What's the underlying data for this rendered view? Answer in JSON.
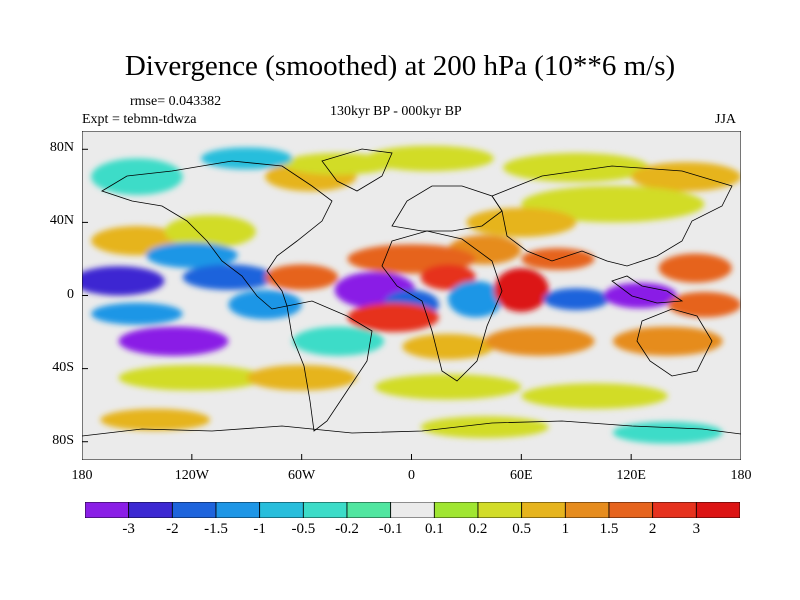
{
  "title": "Divergence (smoothed) at 200 hPa (10**6 m/s)",
  "rmse_label": "rmse= 0.043382",
  "expt_label": "Expt = tebmn-tdwza",
  "period_label": "130kyr BP - 000kyr BP",
  "season_label": "JJA",
  "axes": {
    "lat_ticks": [
      {
        "label": "80N",
        "value": 80
      },
      {
        "label": "40N",
        "value": 40
      },
      {
        "label": "0",
        "value": 0
      },
      {
        "label": "40S",
        "value": -40
      },
      {
        "label": "80S",
        "value": -80
      }
    ],
    "lon_ticks": [
      {
        "label": "180",
        "value": -180
      },
      {
        "label": "120W",
        "value": -120
      },
      {
        "label": "60W",
        "value": -60
      },
      {
        "label": "0",
        "value": 0
      },
      {
        "label": "60E",
        "value": 60
      },
      {
        "label": "120E",
        "value": 120
      },
      {
        "label": "180",
        "value": 180
      }
    ],
    "lat_range": [
      -90,
      90
    ],
    "lon_range": [
      -180,
      180
    ]
  },
  "colorbar": {
    "labels": [
      "-3",
      "-2",
      "-1.5",
      "-1",
      "-0.5",
      "-0.2",
      "-0.1",
      "0.1",
      "0.2",
      "0.5",
      "1",
      "1.5",
      "2",
      "3"
    ],
    "colors": [
      "#8a1ee6",
      "#3c28d2",
      "#1e64dc",
      "#1e96e6",
      "#28bedc",
      "#3cdcc8",
      "#50e6a0",
      "#ebebeb",
      "#a0e632",
      "#d2dc28",
      "#e6b41e",
      "#e68c1e",
      "#e6641e",
      "#e6321e",
      "#dc1414"
    ]
  },
  "features": [
    {
      "lon": -55,
      "lat": 65,
      "rx": 25,
      "ry": 8,
      "color": "#e6b41e"
    },
    {
      "lon": -40,
      "lat": 72,
      "rx": 30,
      "ry": 6,
      "color": "#d2dc28"
    },
    {
      "lon": 10,
      "lat": 75,
      "rx": 35,
      "ry": 7,
      "color": "#d2dc28"
    },
    {
      "lon": 90,
      "lat": 70,
      "rx": 40,
      "ry": 8,
      "color": "#d2dc28"
    },
    {
      "lon": 150,
      "lat": 65,
      "rx": 30,
      "ry": 8,
      "color": "#e6b41e"
    },
    {
      "lon": -150,
      "lat": 65,
      "rx": 25,
      "ry": 10,
      "color": "#3cdcc8"
    },
    {
      "lon": -90,
      "lat": 75,
      "rx": 25,
      "ry": 6,
      "color": "#28bedc"
    },
    {
      "lon": 110,
      "lat": 50,
      "rx": 50,
      "ry": 10,
      "color": "#d2dc28"
    },
    {
      "lon": 60,
      "lat": 40,
      "rx": 30,
      "ry": 8,
      "color": "#e6b41e"
    },
    {
      "lon": 40,
      "lat": 25,
      "rx": 20,
      "ry": 8,
      "color": "#e68c1e"
    },
    {
      "lon": 0,
      "lat": 20,
      "rx": 35,
      "ry": 8,
      "color": "#e6641e"
    },
    {
      "lon": -150,
      "lat": 30,
      "rx": 25,
      "ry": 8,
      "color": "#e6b41e"
    },
    {
      "lon": -110,
      "lat": 35,
      "rx": 25,
      "ry": 9,
      "color": "#d2dc28"
    },
    {
      "lon": -120,
      "lat": 22,
      "rx": 25,
      "ry": 7,
      "color": "#1e96e6"
    },
    {
      "lon": -160,
      "lat": 8,
      "rx": 25,
      "ry": 8,
      "color": "#3c28d2"
    },
    {
      "lon": -100,
      "lat": 10,
      "rx": 25,
      "ry": 7,
      "color": "#1e64dc"
    },
    {
      "lon": -60,
      "lat": 10,
      "rx": 20,
      "ry": 7,
      "color": "#e6641e"
    },
    {
      "lon": -20,
      "lat": 3,
      "rx": 22,
      "ry": 10,
      "color": "#8a1ee6"
    },
    {
      "lon": 0,
      "lat": -5,
      "rx": 15,
      "ry": 8,
      "color": "#1e64dc"
    },
    {
      "lon": -10,
      "lat": -12,
      "rx": 25,
      "ry": 8,
      "color": "#e6321e"
    },
    {
      "lon": 20,
      "lat": 10,
      "rx": 15,
      "ry": 7,
      "color": "#e6321e"
    },
    {
      "lon": 35,
      "lat": -2,
      "rx": 15,
      "ry": 10,
      "color": "#1e96e6"
    },
    {
      "lon": 60,
      "lat": 3,
      "rx": 15,
      "ry": 12,
      "color": "#dc1414"
    },
    {
      "lon": 80,
      "lat": 20,
      "rx": 20,
      "ry": 6,
      "color": "#e6641e"
    },
    {
      "lon": 90,
      "lat": -2,
      "rx": 18,
      "ry": 6,
      "color": "#1e64dc"
    },
    {
      "lon": 125,
      "lat": 0,
      "rx": 20,
      "ry": 7,
      "color": "#8a1ee6"
    },
    {
      "lon": 155,
      "lat": 15,
      "rx": 20,
      "ry": 8,
      "color": "#e6641e"
    },
    {
      "lon": -150,
      "lat": -10,
      "rx": 25,
      "ry": 6,
      "color": "#1e96e6"
    },
    {
      "lon": -130,
      "lat": -25,
      "rx": 30,
      "ry": 8,
      "color": "#8a1ee6"
    },
    {
      "lon": -80,
      "lat": -5,
      "rx": 20,
      "ry": 8,
      "color": "#1e96e6"
    },
    {
      "lon": -40,
      "lat": -25,
      "rx": 25,
      "ry": 8,
      "color": "#3cdcc8"
    },
    {
      "lon": 20,
      "lat": -28,
      "rx": 25,
      "ry": 7,
      "color": "#e6b41e"
    },
    {
      "lon": 70,
      "lat": -25,
      "rx": 30,
      "ry": 8,
      "color": "#e68c1e"
    },
    {
      "lon": 140,
      "lat": -25,
      "rx": 30,
      "ry": 8,
      "color": "#e68c1e"
    },
    {
      "lon": 160,
      "lat": -5,
      "rx": 20,
      "ry": 7,
      "color": "#e6641e"
    },
    {
      "lon": -120,
      "lat": -45,
      "rx": 40,
      "ry": 7,
      "color": "#d2dc28"
    },
    {
      "lon": -60,
      "lat": -45,
      "rx": 30,
      "ry": 7,
      "color": "#e6b41e"
    },
    {
      "lon": 20,
      "lat": -50,
      "rx": 40,
      "ry": 7,
      "color": "#d2dc28"
    },
    {
      "lon": 100,
      "lat": -55,
      "rx": 40,
      "ry": 7,
      "color": "#d2dc28"
    },
    {
      "lon": -140,
      "lat": -68,
      "rx": 30,
      "ry": 6,
      "color": "#e6b41e"
    },
    {
      "lon": 40,
      "lat": -72,
      "rx": 35,
      "ry": 6,
      "color": "#d2dc28"
    },
    {
      "lon": 140,
      "lat": -75,
      "rx": 30,
      "ry": 6,
      "color": "#3cdcc8"
    }
  ]
}
